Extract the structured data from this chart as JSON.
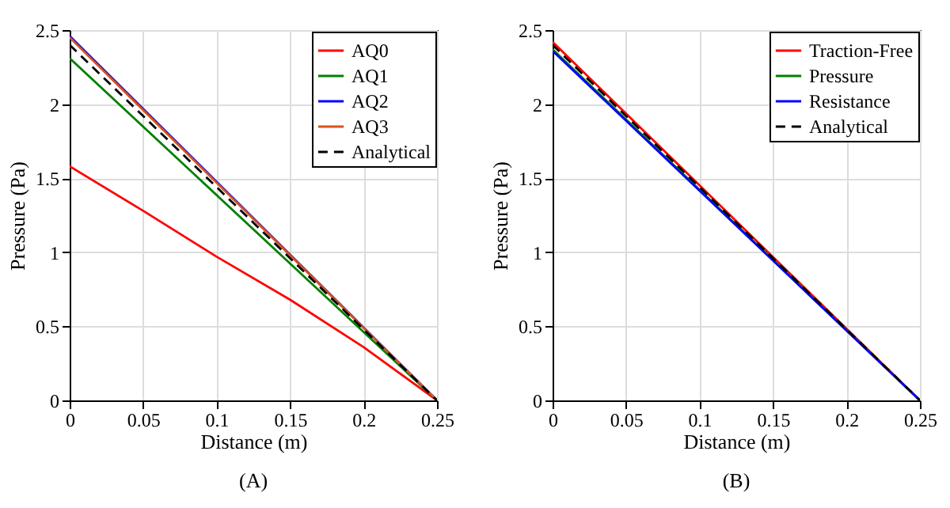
{
  "chart_data": [
    {
      "type": "line",
      "title": "(A)",
      "xlabel": "Distance (m)",
      "ylabel": "Pressure (Pa)",
      "xlim": [
        0,
        0.25
      ],
      "ylim": [
        0,
        2.5
      ],
      "xticks": [
        0,
        0.05,
        0.1,
        0.15,
        0.2,
        0.25
      ],
      "yticks": [
        0,
        0.5,
        1,
        1.5,
        2,
        2.5
      ],
      "grid": true,
      "legend": "top right",
      "line_style": "solid",
      "series": [
        {
          "name": "AQ0",
          "color": "#ff0000",
          "x": [
            0,
            0.05,
            0.1,
            0.15,
            0.2,
            0.25
          ],
          "values": [
            1.58,
            1.28,
            0.97,
            0.68,
            0.36,
            0
          ]
        },
        {
          "name": "AQ1",
          "color": "#008000",
          "x": [
            0,
            0.25
          ],
          "values": [
            2.31,
            0
          ]
        },
        {
          "name": "AQ2",
          "color": "#0000ff",
          "x": [
            0,
            0.25
          ],
          "values": [
            2.46,
            0
          ]
        },
        {
          "name": "AQ3",
          "color": "#d95319",
          "x": [
            0,
            0.25
          ],
          "values": [
            2.45,
            0
          ]
        },
        {
          "name": "Analytical",
          "color": "#000000",
          "line_style": "dashed",
          "x": [
            0,
            0.25
          ],
          "values": [
            2.4,
            0
          ]
        }
      ]
    },
    {
      "type": "line",
      "title": "(B)",
      "xlabel": "Distance (m)",
      "ylabel": "Pressure (Pa)",
      "xlim": [
        0,
        0.25
      ],
      "ylim": [
        0,
        2.5
      ],
      "xticks": [
        0,
        0.05,
        0.1,
        0.15,
        0.2,
        0.25
      ],
      "yticks": [
        0,
        0.5,
        1,
        1.5,
        2,
        2.5
      ],
      "grid": true,
      "legend": "top right",
      "line_style": "solid",
      "series": [
        {
          "name": "Traction-Free",
          "color": "#ff0000",
          "x": [
            0,
            0.25
          ],
          "values": [
            2.42,
            0
          ]
        },
        {
          "name": "Pressure",
          "color": "#008000",
          "x": [
            0,
            0.25
          ],
          "values": [
            2.37,
            0
          ]
        },
        {
          "name": "Resistance",
          "color": "#0000ff",
          "x": [
            0,
            0.25
          ],
          "values": [
            2.36,
            0
          ]
        },
        {
          "name": "Analytical",
          "color": "#000000",
          "line_style": "dashed",
          "x": [
            0,
            0.25
          ],
          "values": [
            2.4,
            0
          ]
        }
      ]
    }
  ]
}
